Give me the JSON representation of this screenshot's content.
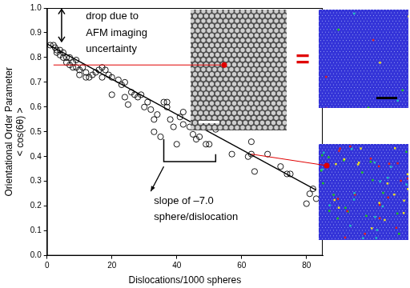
{
  "chart_data": {
    "type": "scatter",
    "x_label": "Dislocations/1000 spheres",
    "y_label": [
      "Orientational Order Parameter",
      "< cos(6θ) >"
    ],
    "annotations": [
      [
        "drop due to",
        "AFM imaging",
        "uncertainty"
      ],
      [
        "slope of –7.0",
        "sphere/dislocation"
      ],
      [
        "="
      ]
    ],
    "xlim": [
      0,
      85
    ],
    "xticks": [
      0,
      20,
      40,
      60,
      80
    ],
    "ylim": [
      0,
      1
    ],
    "yticks": [
      {
        "value": 0,
        "label": "0.0"
      },
      {
        "value": 0.1,
        "label": "0.1"
      },
      {
        "value": 0.2,
        "label": "0.2"
      },
      {
        "value": 0.3,
        "label": "0.3"
      },
      {
        "value": 0.4,
        "label": "0.4"
      },
      {
        "value": 0.5,
        "label": "0.5"
      },
      {
        "value": 0.6,
        "label": "0.6"
      },
      {
        "value": 0.7,
        "label": "0.7"
      },
      {
        "value": 0.8,
        "label": "0.8"
      },
      {
        "value": 0.9,
        "label": "0.9"
      },
      {
        "value": 1,
        "label": "1.0"
      }
    ],
    "grid": false,
    "series": [
      {
        "type": "scatter",
        "marker": "circle_open",
        "color": "#000000",
        "x": [
          1,
          2,
          2.5,
          3,
          3,
          4,
          4,
          5,
          5,
          6,
          6,
          7,
          7,
          8,
          8,
          9,
          9,
          10,
          10,
          11,
          12,
          12,
          13,
          14,
          15,
          16,
          17,
          17,
          18,
          19,
          20,
          20,
          22,
          23,
          24,
          24,
          25,
          26,
          27,
          28,
          29,
          30,
          31,
          32,
          33,
          33,
          34,
          35,
          36,
          37,
          37,
          38,
          39,
          40,
          41,
          42,
          42,
          44,
          45,
          46,
          47,
          48,
          49,
          50,
          52,
          57,
          62,
          63,
          63,
          64,
          68,
          72,
          74,
          75,
          80,
          81,
          82,
          83
        ],
        "values": [
          0.85,
          0.85,
          0.84,
          0.83,
          0.82,
          0.83,
          0.81,
          0.82,
          0.8,
          0.8,
          0.78,
          0.8,
          0.77,
          0.78,
          0.76,
          0.79,
          0.76,
          0.75,
          0.73,
          0.76,
          0.74,
          0.72,
          0.72,
          0.73,
          0.74,
          0.75,
          0.76,
          0.72,
          0.75,
          0.73,
          0.72,
          0.65,
          0.71,
          0.69,
          0.7,
          0.64,
          0.61,
          0.66,
          0.65,
          0.64,
          0.65,
          0.6,
          0.62,
          0.59,
          0.55,
          0.5,
          0.57,
          0.48,
          0.62,
          0.6,
          0.62,
          0.55,
          0.52,
          0.45,
          0.56,
          0.58,
          0.53,
          0.52,
          0.49,
          0.47,
          0.48,
          0.53,
          0.45,
          0.45,
          0.51,
          0.41,
          0.4,
          0.41,
          0.46,
          0.34,
          0.41,
          0.36,
          0.33,
          0.33,
          0.21,
          0.25,
          0.27,
          0.23
        ]
      },
      {
        "type": "line",
        "line_style": "solid",
        "color": "#000000",
        "x": [
          0,
          83
        ],
        "values": [
          0.855,
          0.265
        ]
      }
    ]
  }
}
